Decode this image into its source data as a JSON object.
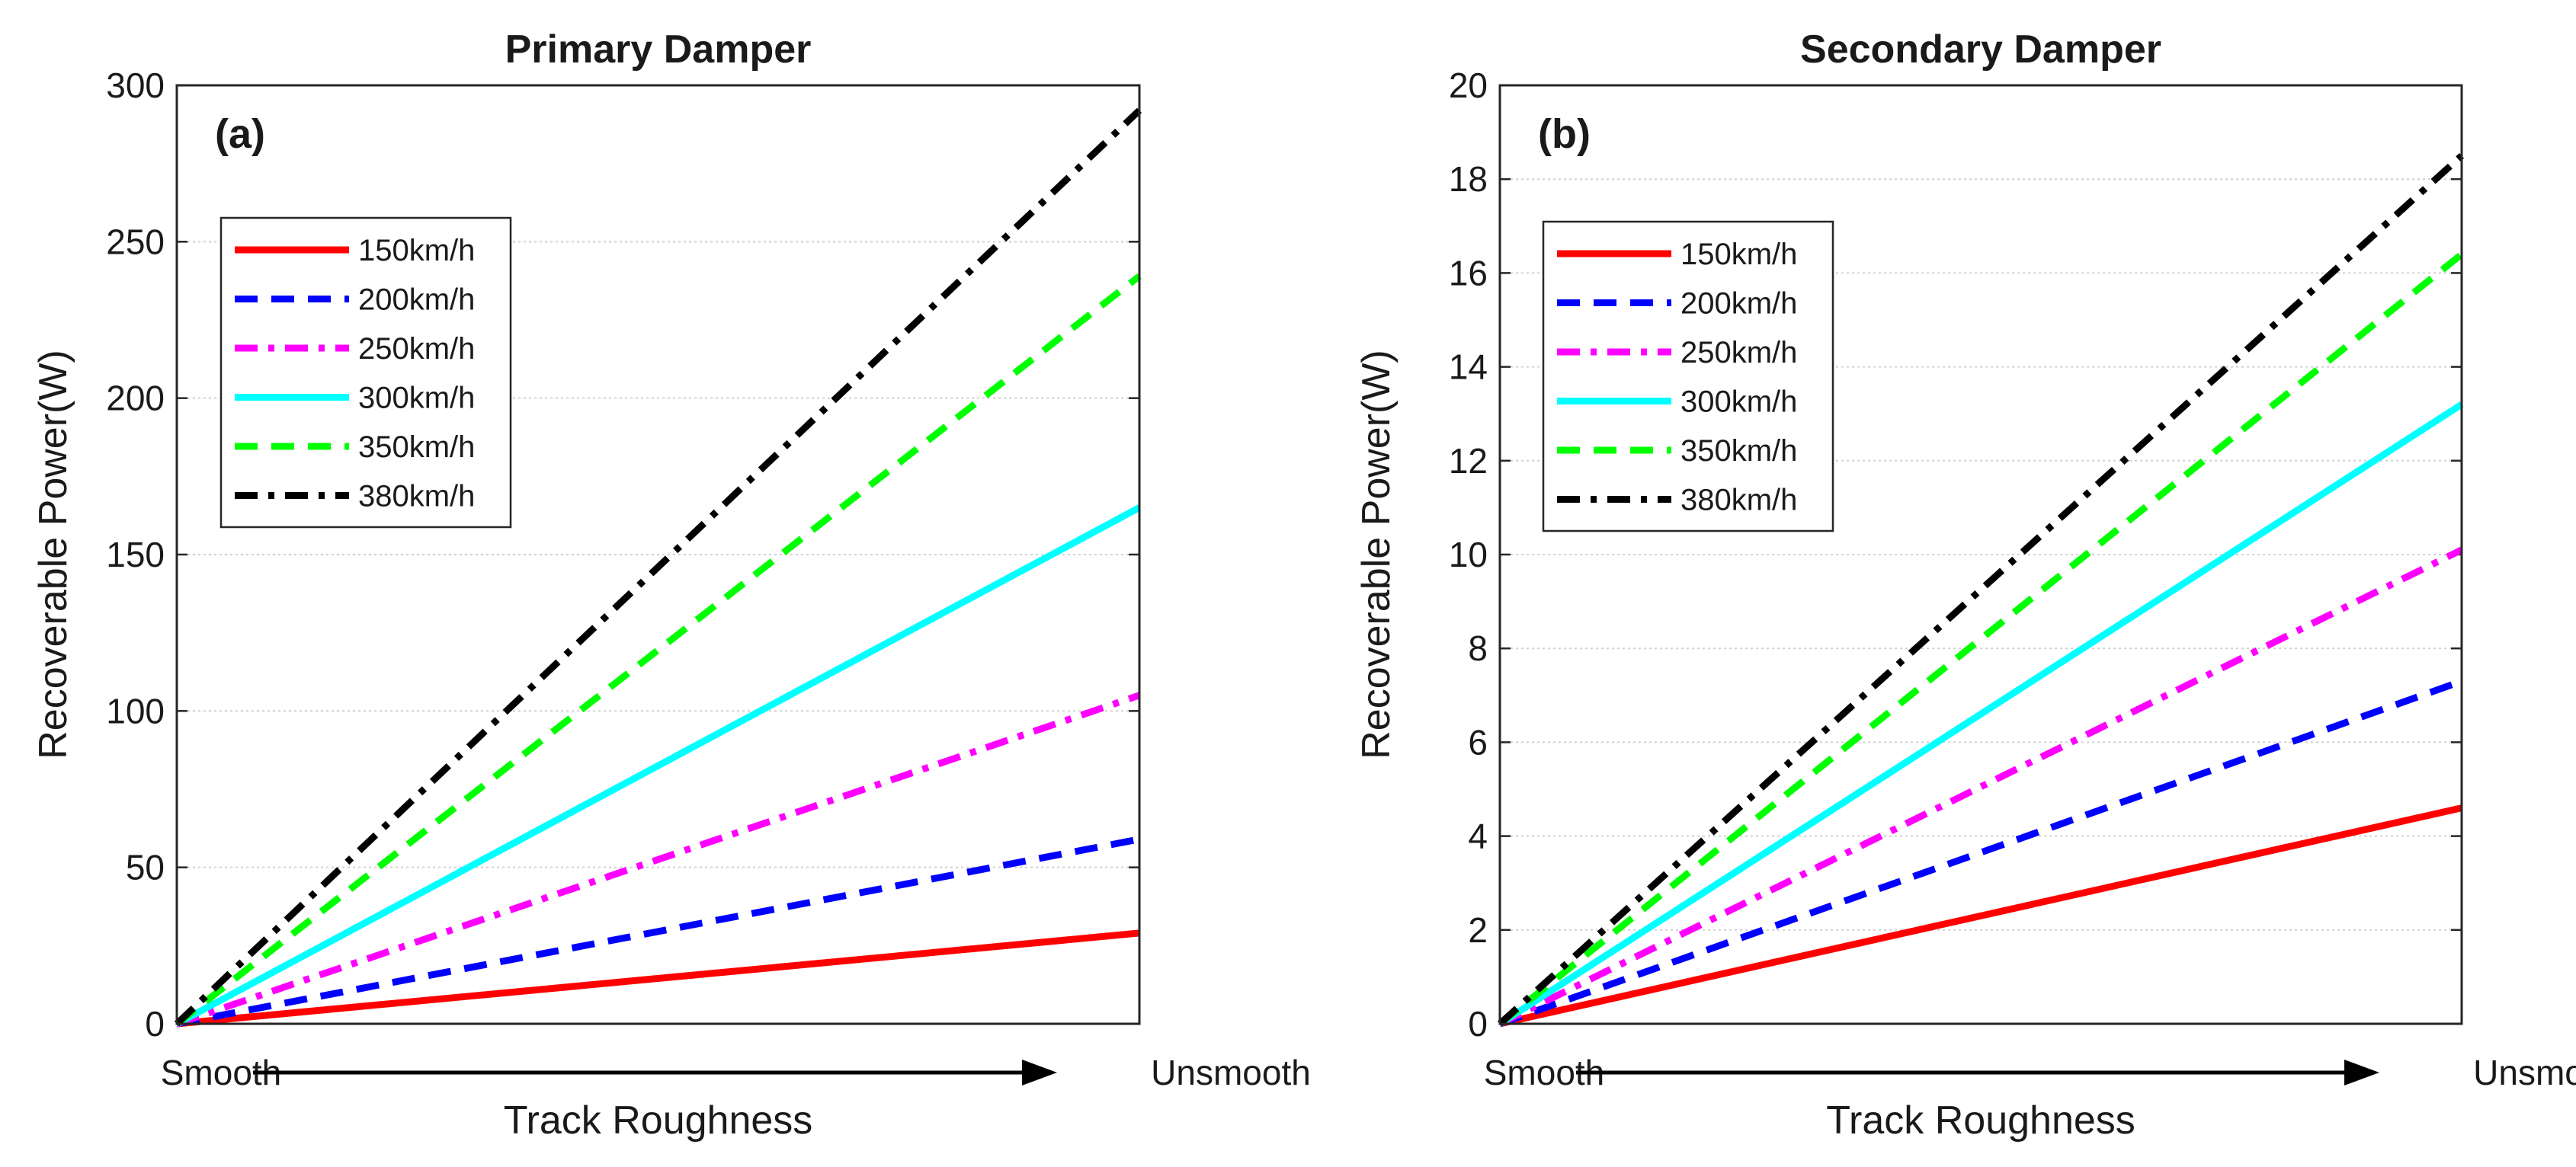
{
  "chart_data": [
    {
      "type": "line",
      "title": "Primary Damper",
      "panel_label": "(a)",
      "xlabel": "Track Roughness",
      "ylabel": "Recoverable Power(W)",
      "x_start_label": "Smooth",
      "x_end_label": "Unsmooth",
      "xlim": [
        0,
        1
      ],
      "ylim": [
        0,
        300
      ],
      "yticks": [
        0,
        50,
        100,
        150,
        200,
        250,
        300
      ],
      "grid": true,
      "legend_position": "upper-left",
      "series": [
        {
          "name": "150km/h",
          "color": "#ff0000",
          "style": "solid",
          "x": [
            0,
            1
          ],
          "values": [
            0,
            29
          ]
        },
        {
          "name": "200km/h",
          "color": "#0000ff",
          "style": "dashed",
          "x": [
            0,
            1
          ],
          "values": [
            0,
            59
          ]
        },
        {
          "name": "250km/h",
          "color": "#ff00ff",
          "style": "dashdot",
          "x": [
            0,
            1
          ],
          "values": [
            0,
            105
          ]
        },
        {
          "name": "300km/h",
          "color": "#00ffff",
          "style": "solid",
          "x": [
            0,
            1
          ],
          "values": [
            0,
            165
          ]
        },
        {
          "name": "350km/h",
          "color": "#00ff00",
          "style": "dashed",
          "x": [
            0,
            1
          ],
          "values": [
            0,
            239
          ]
        },
        {
          "name": "380km/h",
          "color": "#000000",
          "style": "dashdot",
          "x": [
            0,
            1
          ],
          "values": [
            0,
            292
          ]
        }
      ]
    },
    {
      "type": "line",
      "title": "Secondary Damper",
      "panel_label": "(b)",
      "xlabel": "Track Roughness",
      "ylabel": "Recoverable Power(W)",
      "x_start_label": "Smooth",
      "x_end_label": "Unsmooth",
      "xlim": [
        0,
        1
      ],
      "ylim": [
        0,
        20
      ],
      "yticks": [
        0,
        2,
        4,
        6,
        8,
        10,
        12,
        14,
        16,
        18,
        20
      ],
      "grid": true,
      "legend_position": "upper-left",
      "series": [
        {
          "name": "150km/h",
          "color": "#ff0000",
          "style": "solid",
          "x": [
            0,
            1
          ],
          "values": [
            0,
            4.6
          ]
        },
        {
          "name": "200km/h",
          "color": "#0000ff",
          "style": "dashed",
          "x": [
            0,
            1
          ],
          "values": [
            0,
            7.3
          ]
        },
        {
          "name": "250km/h",
          "color": "#ff00ff",
          "style": "dashdot",
          "x": [
            0,
            1
          ],
          "values": [
            0,
            10.1
          ]
        },
        {
          "name": "300km/h",
          "color": "#00ffff",
          "style": "solid",
          "x": [
            0,
            1
          ],
          "values": [
            0,
            13.2
          ]
        },
        {
          "name": "350km/h",
          "color": "#00ff00",
          "style": "dashed",
          "x": [
            0,
            1
          ],
          "values": [
            0,
            16.4
          ]
        },
        {
          "name": "380km/h",
          "color": "#000000",
          "style": "dashdot",
          "x": [
            0,
            1
          ],
          "values": [
            0,
            18.5
          ]
        }
      ]
    }
  ]
}
